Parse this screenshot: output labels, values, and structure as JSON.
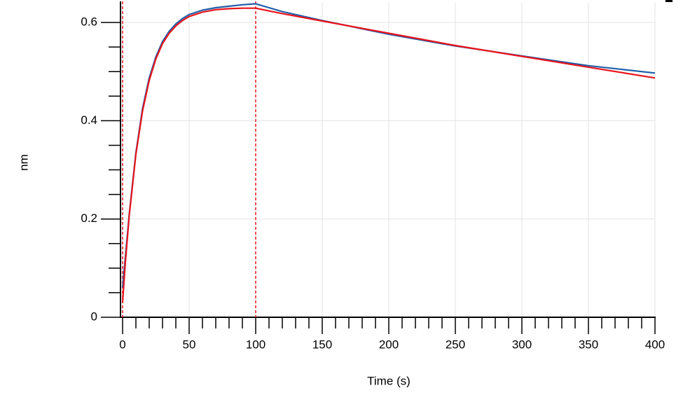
{
  "chart_data": {
    "type": "line",
    "x_label": "Time (s)",
    "y_label": "nm",
    "x": [
      0,
      2,
      5,
      10,
      15,
      20,
      25,
      30,
      35,
      40,
      45,
      50,
      60,
      70,
      80,
      90,
      100,
      120,
      150,
      200,
      250,
      300,
      350,
      400
    ],
    "series": [
      {
        "color": "#1f5fa8",
        "values": [
          0.06,
          0.12,
          0.21,
          0.335,
          0.425,
          0.487,
          0.53,
          0.561,
          0.582,
          0.597,
          0.608,
          0.616,
          0.625,
          0.63,
          0.633,
          0.636,
          0.638,
          0.622,
          0.604,
          0.576,
          0.552,
          0.532,
          0.512,
          0.497
        ]
      },
      {
        "color": "#e8141c",
        "values": [
          0.03,
          0.109,
          0.207,
          0.332,
          0.42,
          0.482,
          0.526,
          0.557,
          0.578,
          0.593,
          0.604,
          0.612,
          0.621,
          0.626,
          0.628,
          0.629,
          0.629,
          0.618,
          0.603,
          0.578,
          0.553,
          0.531,
          0.509,
          0.487
        ]
      }
    ],
    "step_markers": [
      0,
      100
    ],
    "step_marker_color": "#e8141c",
    "xlim": [
      0,
      400
    ],
    "xticks": [
      0,
      50,
      100,
      150,
      200,
      250,
      300,
      350,
      400
    ],
    "xminorticks": [
      10,
      20,
      30,
      40,
      60,
      70,
      80,
      90,
      110,
      120,
      130,
      140,
      160,
      170,
      180,
      190,
      210,
      220,
      230,
      240,
      260,
      270,
      280,
      290,
      310,
      320,
      330,
      340,
      360,
      370,
      380,
      390
    ],
    "ylim": [
      0,
      0.64
    ],
    "yticks": [
      0,
      0.2,
      0.4,
      0.6
    ],
    "yminorticks": [
      0.05,
      0.1,
      0.15,
      0.25,
      0.3,
      0.35,
      0.45,
      0.5,
      0.55
    ],
    "grid": true
  }
}
